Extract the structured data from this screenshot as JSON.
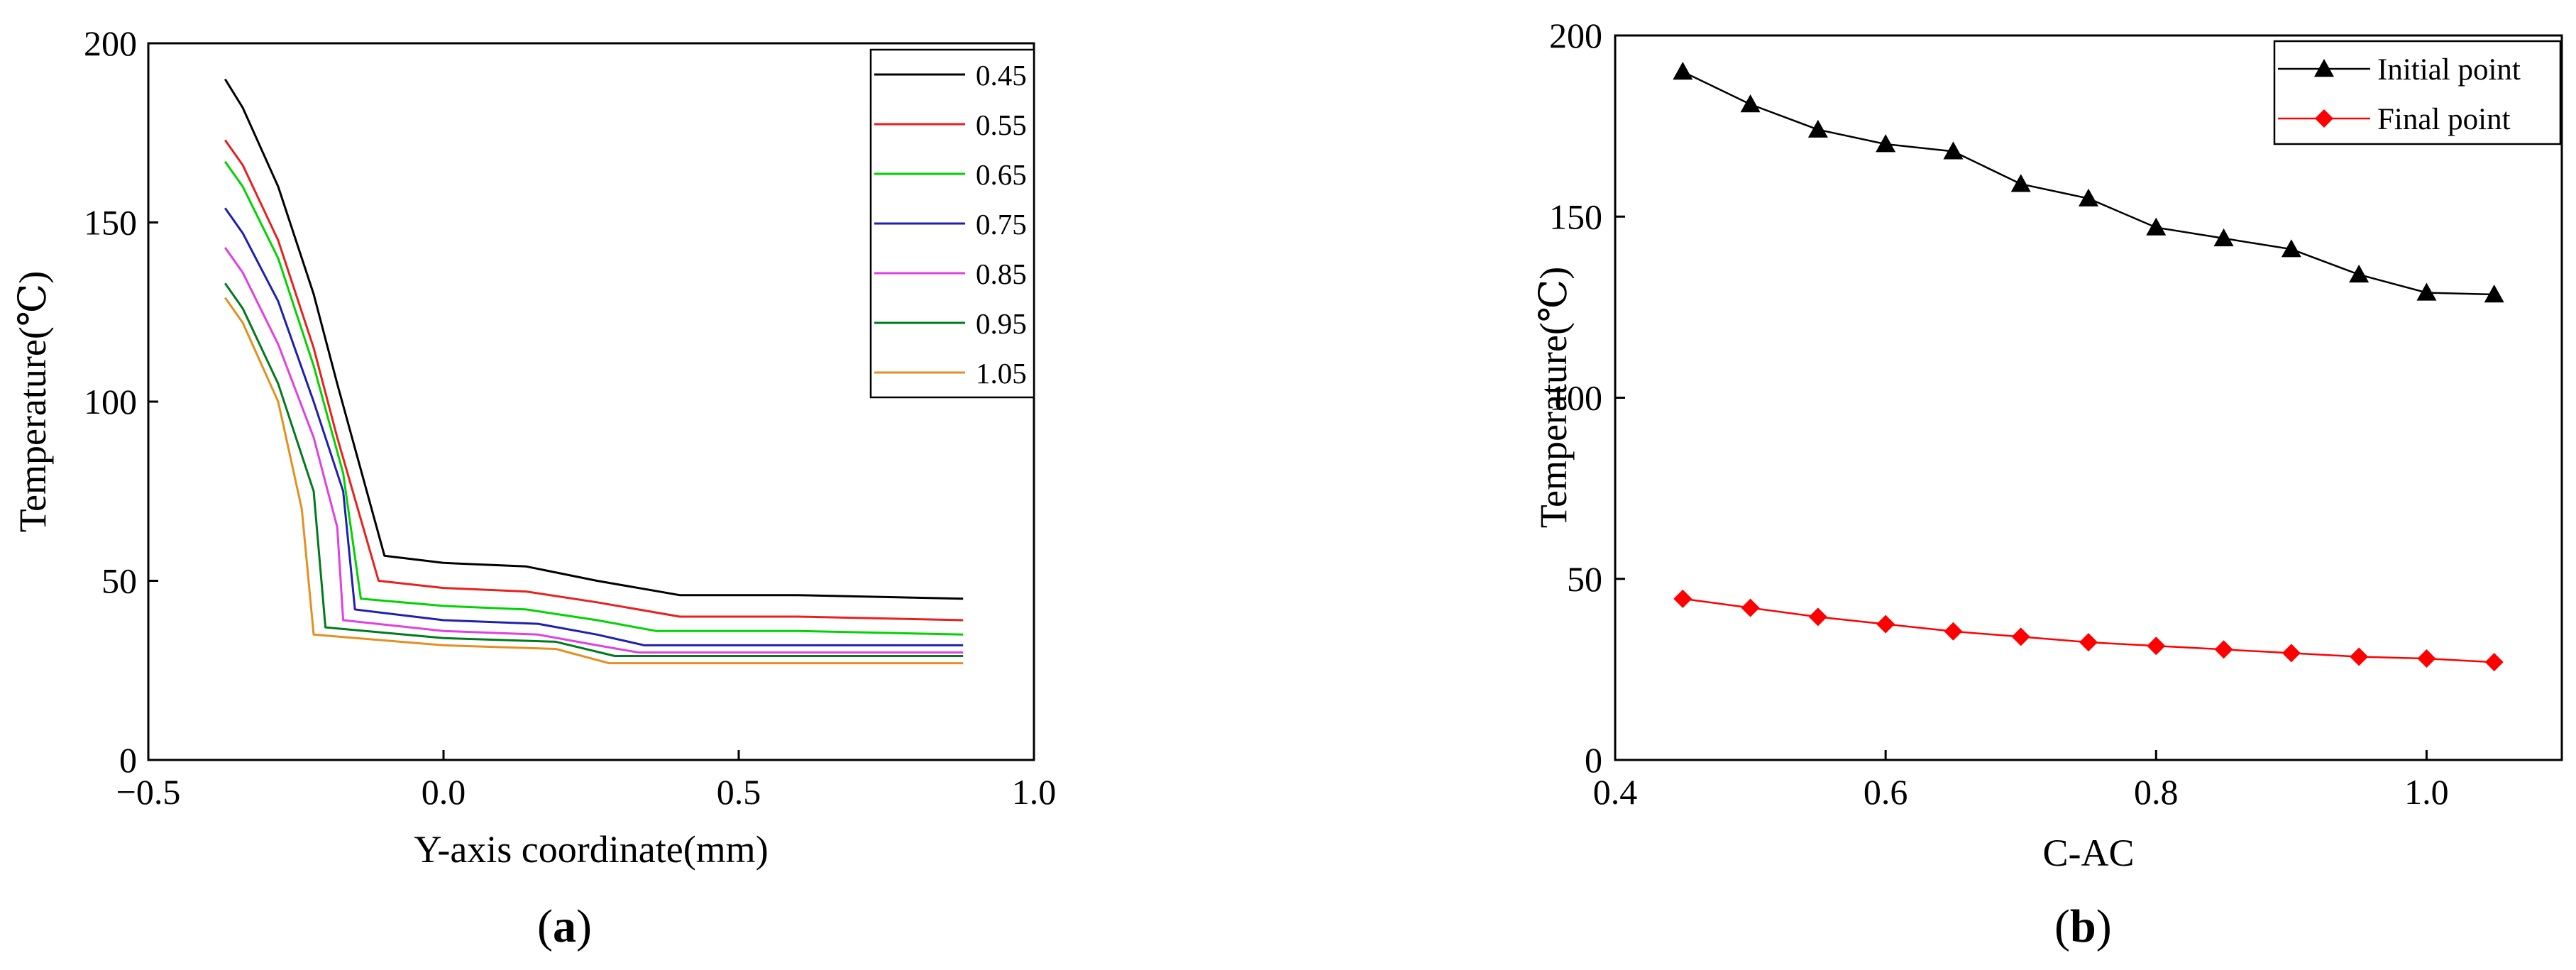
{
  "chart_data": [
    {
      "panel": "a",
      "type": "line",
      "xlabel": "Y-axis coordinate(mm)",
      "ylabel": "Temperature(℃)",
      "xlim": [
        -0.5,
        1.0
      ],
      "ylim": [
        0,
        200
      ],
      "xticks": [
        "−0.5",
        "0.0",
        "0.5",
        "1.0"
      ],
      "yticks": [
        "0",
        "50",
        "100",
        "150",
        "200"
      ],
      "grid": false,
      "legend_position": "top-right",
      "colors": [
        "#000000",
        "#e8201e",
        "#00d400",
        "#2020b0",
        "#e040e0",
        "#007a1a",
        "#e39020"
      ],
      "series": [
        {
          "name": "0.45",
          "x": [
            -0.37,
            -0.34,
            -0.28,
            -0.22,
            -0.18,
            -0.1,
            0.0,
            0.14,
            0.26,
            0.4,
            0.6,
            0.88
          ],
          "y": [
            190,
            182,
            160,
            130,
            105,
            57,
            55,
            54,
            50,
            46,
            46,
            45
          ]
        },
        {
          "name": "0.55",
          "x": [
            -0.37,
            -0.34,
            -0.28,
            -0.22,
            -0.18,
            -0.11,
            0.0,
            0.14,
            0.26,
            0.4,
            0.6,
            0.88
          ],
          "y": [
            173,
            166,
            145,
            115,
            90,
            50,
            48,
            47,
            44,
            40,
            40,
            39
          ]
        },
        {
          "name": "0.65",
          "x": [
            -0.37,
            -0.34,
            -0.28,
            -0.22,
            -0.17,
            -0.14,
            0.0,
            0.14,
            0.26,
            0.36,
            0.6,
            0.88
          ],
          "y": [
            167,
            160,
            140,
            110,
            80,
            45,
            43,
            42,
            39,
            36,
            36,
            35
          ]
        },
        {
          "name": "0.75",
          "x": [
            -0.37,
            -0.34,
            -0.28,
            -0.22,
            -0.17,
            -0.15,
            0.0,
            0.16,
            0.26,
            0.34,
            0.6,
            0.88
          ],
          "y": [
            154,
            147,
            128,
            100,
            75,
            42,
            39,
            38,
            35,
            32,
            32,
            32
          ]
        },
        {
          "name": "0.85",
          "x": [
            -0.37,
            -0.34,
            -0.28,
            -0.22,
            -0.18,
            -0.17,
            0.0,
            0.16,
            0.26,
            0.33,
            0.6,
            0.88
          ],
          "y": [
            143,
            136,
            116,
            90,
            65,
            39,
            36,
            35,
            32,
            30,
            30,
            30
          ]
        },
        {
          "name": "0.95",
          "x": [
            -0.37,
            -0.34,
            -0.28,
            -0.22,
            -0.2,
            0.0,
            0.19,
            0.29,
            0.6,
            0.88
          ],
          "y": [
            133,
            126,
            105,
            75,
            37,
            34,
            33,
            29,
            29,
            29
          ]
        },
        {
          "name": "1.05",
          "x": [
            -0.37,
            -0.34,
            -0.28,
            -0.24,
            -0.22,
            0.0,
            0.19,
            0.28,
            0.6,
            0.88
          ],
          "y": [
            129,
            122,
            100,
            70,
            35,
            32,
            31,
            27,
            27,
            27
          ]
        }
      ]
    },
    {
      "panel": "b",
      "type": "line",
      "xlabel": "C-AC",
      "ylabel": "Temperature(℃)",
      "xlim": [
        0.4,
        1.1
      ],
      "ylim": [
        0,
        200
      ],
      "xticks": [
        "0.4",
        "0.6",
        "0.8",
        "1.0"
      ],
      "yticks": [
        "0",
        "50",
        "100",
        "150",
        "200"
      ],
      "grid": false,
      "legend_position": "top-right",
      "x": [
        0.45,
        0.5,
        0.55,
        0.6,
        0.65,
        0.7,
        0.75,
        0.8,
        0.85,
        0.9,
        0.95,
        1.0,
        1.05
      ],
      "series": [
        {
          "name": "Initial point",
          "marker": "triangle",
          "color": "#000000",
          "values": [
            190,
            181,
            174,
            170,
            168,
            159,
            155,
            147,
            144,
            141,
            134,
            129,
            128.5
          ]
        },
        {
          "name": "Final point",
          "marker": "diamond",
          "color": "#ff0000",
          "values": [
            44.5,
            42,
            39.5,
            37.5,
            35.5,
            34,
            32.5,
            31.5,
            30.5,
            29.5,
            28.5,
            28,
            27
          ]
        }
      ]
    }
  ],
  "panel_labels": {
    "a": {
      "open": "(",
      "letter": "a",
      "close": ")"
    },
    "b": {
      "open": "(",
      "letter": "b",
      "close": ")"
    }
  }
}
